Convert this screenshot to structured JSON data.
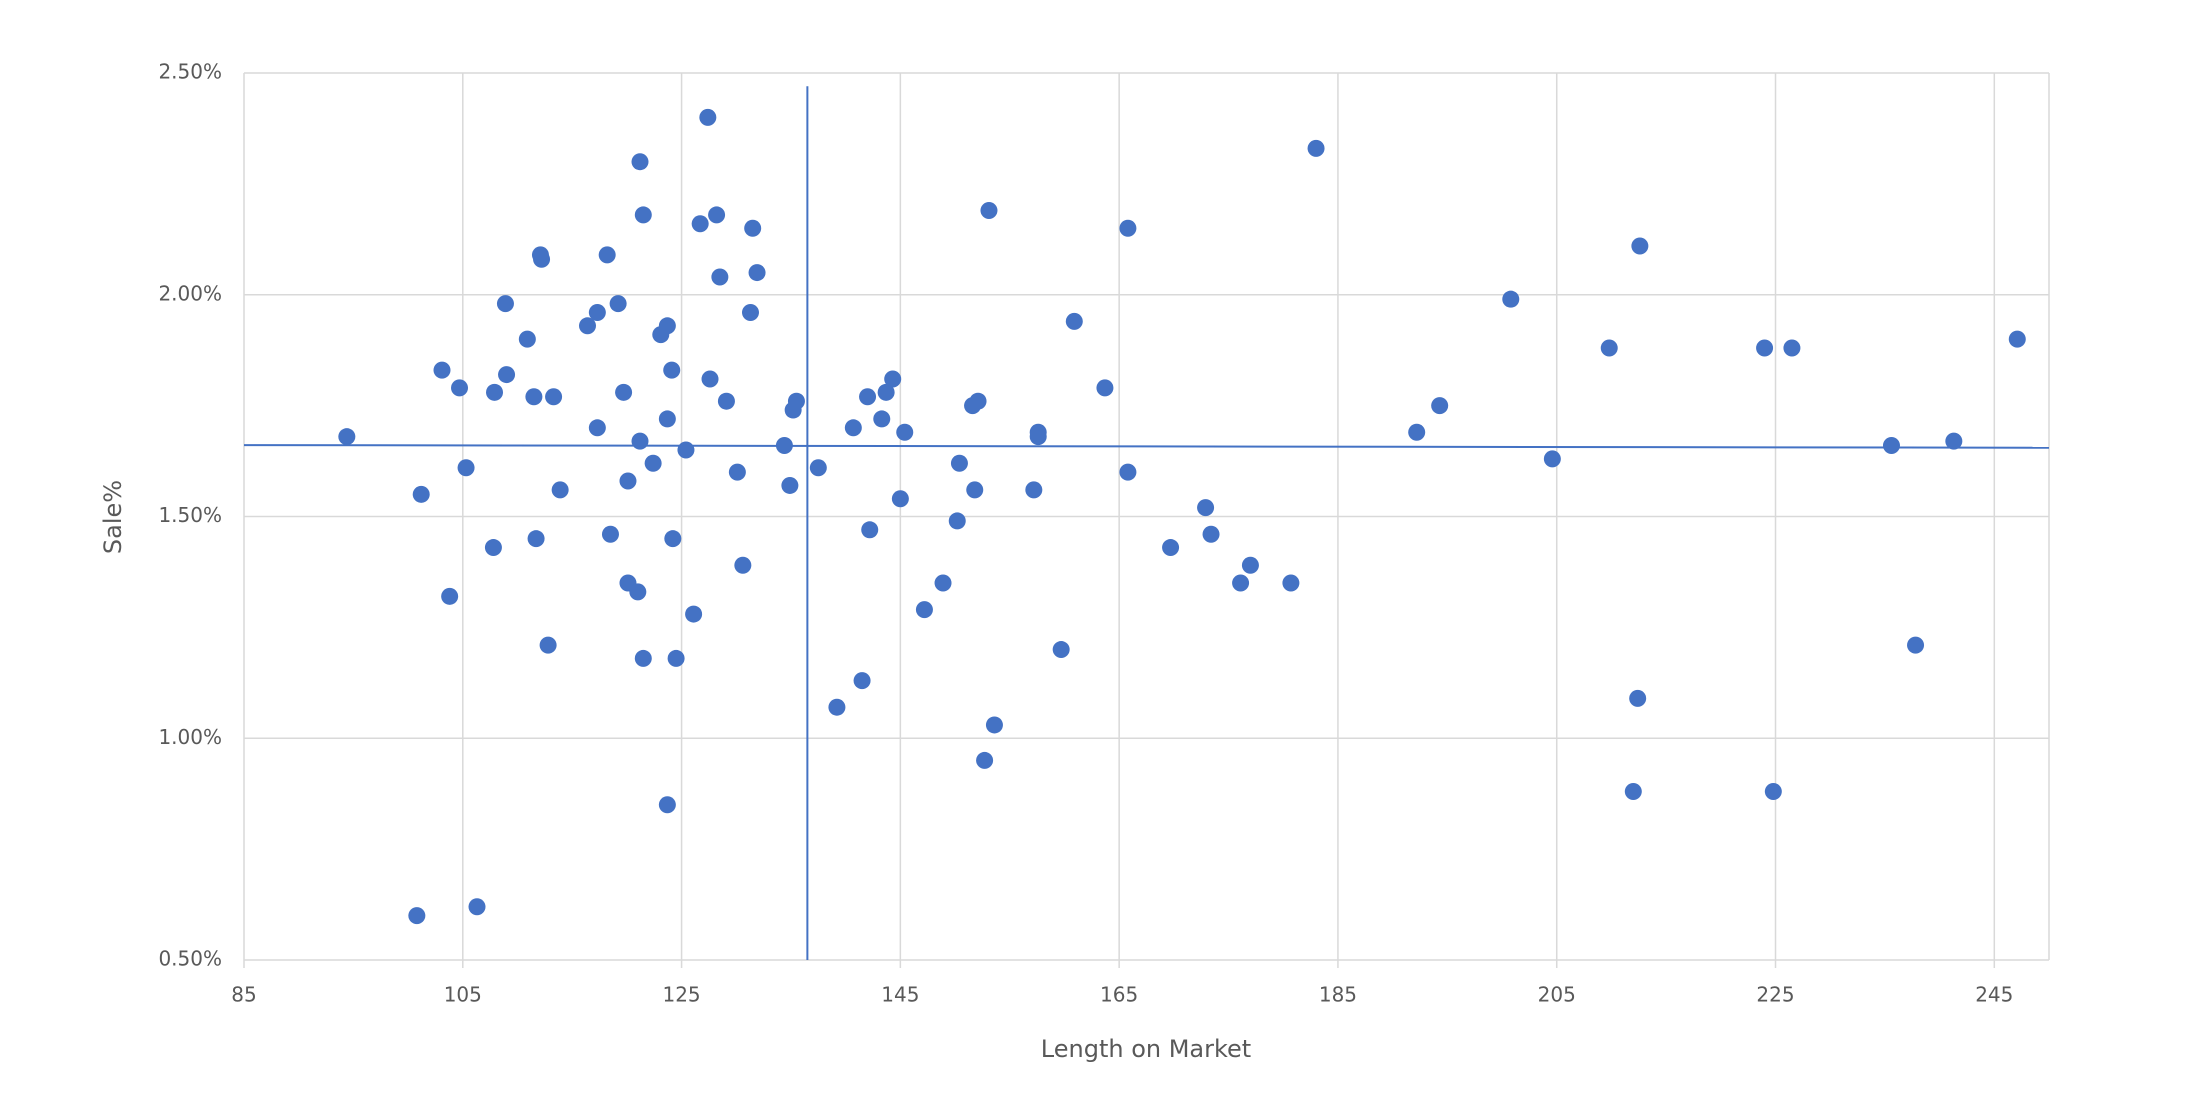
{
  "chart_data": {
    "type": "scatter",
    "x_label": "Length on Market",
    "y_label": "Sale%",
    "color": "#4472c4",
    "grid": true,
    "xlim": [
      85,
      250
    ],
    "xticks": [
      85,
      105,
      125,
      145,
      165,
      185,
      205,
      225,
      245
    ],
    "ylim": [
      0.5,
      2.5
    ],
    "yticks": [
      {
        "value": 0.5,
        "label": "0.50%"
      },
      {
        "value": 1.0,
        "label": "1.00%"
      },
      {
        "value": 1.5,
        "label": "1.50%"
      },
      {
        "value": 2.0,
        "label": "2.00%"
      },
      {
        "value": 2.5,
        "label": "2.50%"
      }
    ],
    "x": [
      94.4,
      100.8,
      101.2,
      103.1,
      103.8,
      104.7,
      105.3,
      106.3,
      107.8,
      107.9,
      108.9,
      109.0,
      110.9,
      111.5,
      111.7,
      112.1,
      112.2,
      112.8,
      113.3,
      113.9,
      116.4,
      117.3,
      117.3,
      118.2,
      118.5,
      119.2,
      119.7,
      120.1,
      120.1,
      121.0,
      121.2,
      121.2,
      121.5,
      121.5,
      122.4,
      123.1,
      123.7,
      123.7,
      123.7,
      124.1,
      124.2,
      124.5,
      125.4,
      126.1,
      126.7,
      127.4,
      127.6,
      128.2,
      128.5,
      129.1,
      130.1,
      130.6,
      131.3,
      131.5,
      131.9,
      134.4,
      134.9,
      135.2,
      135.5,
      137.5,
      139.2,
      140.7,
      141.5,
      142.0,
      142.2,
      143.3,
      143.7,
      144.3,
      145.0,
      145.4,
      147.2,
      148.9,
      150.2,
      150.4,
      151.6,
      151.8,
      152.1,
      152.7,
      153.1,
      153.6,
      157.2,
      157.6,
      157.6,
      159.7,
      160.9,
      163.7,
      165.8,
      165.8,
      169.7,
      172.9,
      173.4,
      176.1,
      177.0,
      180.7,
      183.0,
      192.2,
      194.3,
      200.8,
      204.6,
      209.8,
      212.0,
      212.4,
      212.6,
      224.0,
      224.8,
      226.5,
      235.6,
      237.8,
      241.3,
      247.1
    ],
    "values": [
      1.68,
      0.6,
      1.55,
      1.83,
      1.32,
      1.79,
      1.61,
      0.62,
      1.43,
      1.78,
      1.98,
      1.82,
      1.9,
      1.77,
      1.45,
      2.09,
      2.08,
      1.21,
      1.77,
      1.56,
      1.93,
      1.96,
      1.7,
      2.09,
      1.46,
      1.98,
      1.78,
      1.58,
      1.35,
      1.33,
      2.3,
      1.67,
      2.18,
      1.18,
      1.62,
      1.91,
      1.93,
      1.72,
      0.85,
      1.83,
      1.45,
      1.18,
      1.65,
      1.28,
      2.16,
      2.4,
      1.81,
      2.18,
      2.04,
      1.76,
      1.6,
      1.39,
      1.96,
      2.15,
      2.05,
      1.66,
      1.57,
      1.74,
      1.76,
      1.61,
      1.07,
      1.7,
      1.13,
      1.77,
      1.47,
      1.72,
      1.78,
      1.81,
      1.54,
      1.69,
      1.29,
      1.35,
      1.49,
      1.62,
      1.75,
      1.56,
      1.76,
      0.95,
      2.19,
      1.03,
      1.56,
      1.69,
      1.68,
      1.2,
      1.94,
      1.79,
      2.15,
      1.6,
      1.43,
      1.52,
      1.46,
      1.35,
      1.39,
      1.35,
      2.33,
      1.69,
      1.75,
      1.99,
      1.63,
      1.88,
      0.88,
      1.09,
      2.11,
      1.88,
      0.88,
      1.88,
      1.66,
      1.21,
      1.67,
      1.9
    ],
    "reference_lines": [
      {
        "x": [
          136.5,
          136.5
        ],
        "y": [
          2.47,
          0.5
        ]
      },
      {
        "x": [
          85,
          250
        ],
        "y": [
          1.661,
          1.655
        ]
      }
    ]
  }
}
